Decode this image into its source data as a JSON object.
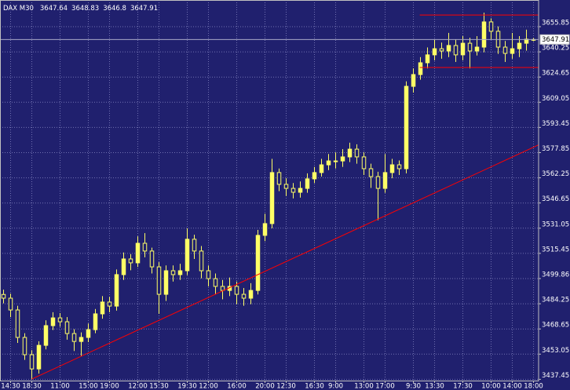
{
  "chart_data": {
    "type": "candlestick",
    "title": "DAX M30",
    "background": "#20206e",
    "grid": true,
    "grid_color": "#7070b0",
    "candle_color": "#ffff66",
    "price_line_color": "#a8a8c8",
    "xlim": [
      -0.5,
      75.72
    ],
    "ylim": [
      3436.67,
      3672.37
    ],
    "yticks": [
      3437.45,
      3453.05,
      3468.65,
      3484.25,
      3499.86,
      3515.45,
      3531.05,
      3546.65,
      3562.25,
      3577.85,
      3593.45,
      3609.05,
      3624.65,
      3640.25,
      3655.85
    ],
    "xticks": [
      {
        "value": 1,
        "label": "14:30"
      },
      {
        "value": 4,
        "label": "18:30"
      },
      {
        "value": 8,
        "label": "11:00"
      },
      {
        "value": 12,
        "label": "15:00"
      },
      {
        "value": 15,
        "label": "19:00"
      },
      {
        "value": 19,
        "label": "12:00"
      },
      {
        "value": 22,
        "label": "15:30"
      },
      {
        "value": 26,
        "label": "19:30"
      },
      {
        "value": 29,
        "label": "12:00"
      },
      {
        "value": 33,
        "label": "16:00"
      },
      {
        "value": 37,
        "label": "20:00"
      },
      {
        "value": 40,
        "label": "12:30"
      },
      {
        "value": 44,
        "label": "16:30"
      },
      {
        "value": 47,
        "label": "9:00"
      },
      {
        "value": 51,
        "label": "13:00"
      },
      {
        "value": 54,
        "label": "17:00"
      },
      {
        "value": 58,
        "label": "9:30"
      },
      {
        "value": 61,
        "label": "13:30"
      },
      {
        "value": 65,
        "label": "17:30"
      },
      {
        "value": 69,
        "label": "10:00"
      },
      {
        "value": 72,
        "label": "14:00"
      },
      {
        "value": 75,
        "label": "18:00"
      }
    ],
    "open": [
      3490.0,
      3487.7,
      3480.4,
      3463.4,
      3452.7,
      3443.9,
      3458.5,
      3470.7,
      3475.5,
      3473.1,
      3465.8,
      3460.9,
      3463.4,
      3468.2,
      3478.0,
      3485.3,
      3482.8,
      3502.3,
      3512.0,
      3509.6,
      3521.7,
      3516.9,
      3507.1,
      3490.1,
      3504.7,
      3502.3,
      3504.7,
      3524.2,
      3516.9,
      3504.7,
      3499.8,
      3495.0,
      3492.5,
      3495.0,
      3490.1,
      3487.7,
      3492.5,
      3526.6,
      3533.9,
      3565.5,
      3558.2,
      3555.7,
      3553.3,
      3555.7,
      3561.6,
      3565.5,
      3570.3,
      3572.7,
      3572.7,
      3575.2,
      3580.0,
      3575.2,
      3567.9,
      3563.0,
      3555.7,
      3565.5,
      3570.3,
      3567.9,
      3618.9,
      3626.2,
      3633.5,
      3638.4,
      3642.2,
      3640.8,
      3644.2,
      3638.4,
      3645.6,
      3640.8,
      3643.2,
      3658.8,
      3653.0,
      3643.2,
      3639.3,
      3642.2,
      3645.6,
      3647.64
    ],
    "high": [
      3493.0,
      3490.5,
      3483.0,
      3466.0,
      3455.5,
      3461.0,
      3474.0,
      3479.0,
      3478.5,
      3476.0,
      3468.5,
      3466.5,
      3472.0,
      3481.0,
      3489.0,
      3488.5,
      3505.5,
      3516.0,
      3515.0,
      3526.0,
      3528.0,
      3519.0,
      3510.0,
      3508.0,
      3508.0,
      3509.0,
      3531.0,
      3527.0,
      3520.0,
      3508.0,
      3503.0,
      3499.0,
      3500.5,
      3498.0,
      3494.0,
      3497.0,
      3530.0,
      3540.0,
      3574.0,
      3568.0,
      3562.0,
      3559.0,
      3560.0,
      3565.0,
      3569.0,
      3574.0,
      3577.0,
      3578.0,
      3580.0,
      3584.0,
      3583.0,
      3578.0,
      3571.0,
      3566.0,
      3577.0,
      3574.0,
      3573.0,
      3622.0,
      3630.0,
      3637.0,
      3643.0,
      3648.0,
      3646.0,
      3652.0,
      3648.0,
      3650.0,
      3649.0,
      3650.0,
      3664.5,
      3661.0,
      3656.0,
      3647.0,
      3652.0,
      3650.0,
      3654.0,
      3648.83
    ],
    "low": [
      3484.5,
      3476.0,
      3460.0,
      3449.5,
      3437.5,
      3441.0,
      3456.0,
      3468.0,
      3470.0,
      3462.0,
      3455.0,
      3452.0,
      3460.5,
      3466.0,
      3475.0,
      3479.0,
      3480.0,
      3499.0,
      3505.0,
      3507.0,
      3513.0,
      3503.0,
      3478.0,
      3486.0,
      3498.0,
      3499.0,
      3502.0,
      3512.0,
      3500.0,
      3495.0,
      3490.0,
      3487.0,
      3489.0,
      3484.0,
      3483.0,
      3484.0,
      3490.0,
      3523.0,
      3531.0,
      3554.0,
      3551.0,
      3549.5,
      3550.0,
      3553.0,
      3559.0,
      3563.0,
      3567.0,
      3568.0,
      3569.0,
      3572.0,
      3571.0,
      3564.0,
      3556.0,
      3536.0,
      3553.0,
      3562.0,
      3564.0,
      3565.0,
      3615.0,
      3623.0,
      3630.0,
      3635.0,
      3636.0,
      3637.0,
      3634.0,
      3635.0,
      3630.0,
      3638.0,
      3640.0,
      3648.0,
      3639.0,
      3634.0,
      3636.0,
      3637.0,
      3641.0,
      3646.8
    ],
    "close": [
      3487.7,
      3480.4,
      3463.4,
      3452.7,
      3443.9,
      3458.5,
      3470.7,
      3475.5,
      3473.1,
      3465.8,
      3460.9,
      3463.4,
      3468.2,
      3478.0,
      3485.3,
      3482.8,
      3502.3,
      3512.0,
      3509.6,
      3521.7,
      3516.9,
      3507.1,
      3490.1,
      3504.7,
      3502.3,
      3504.7,
      3524.2,
      3516.9,
      3504.7,
      3499.8,
      3495.0,
      3492.5,
      3495.0,
      3490.1,
      3487.7,
      3492.5,
      3526.6,
      3533.9,
      3565.5,
      3558.2,
      3555.7,
      3553.3,
      3555.7,
      3561.6,
      3565.5,
      3570.3,
      3572.7,
      3572.7,
      3575.2,
      3580.0,
      3575.2,
      3567.9,
      3563.0,
      3555.7,
      3565.5,
      3570.3,
      3567.9,
      3618.9,
      3626.2,
      3633.5,
      3638.4,
      3642.2,
      3640.8,
      3644.2,
      3638.4,
      3645.6,
      3640.8,
      3643.2,
      3658.8,
      3653.0,
      3643.2,
      3639.3,
      3642.2,
      3645.6,
      3648.1,
      3647.91
    ],
    "lines": [
      {
        "color": "#ff0000",
        "x": [
          4,
          75.7
        ],
        "y": [
          3437.6,
          3582.6
        ]
      },
      {
        "color": "#ff0000",
        "x": [
          58.9,
          75.7
        ],
        "y": [
          3663.1,
          3663.1
        ]
      },
      {
        "color": "#ff0000",
        "x": [
          58.9,
          75.7
        ],
        "y": [
          3630.6,
          3630.6
        ]
      }
    ]
  }
}
